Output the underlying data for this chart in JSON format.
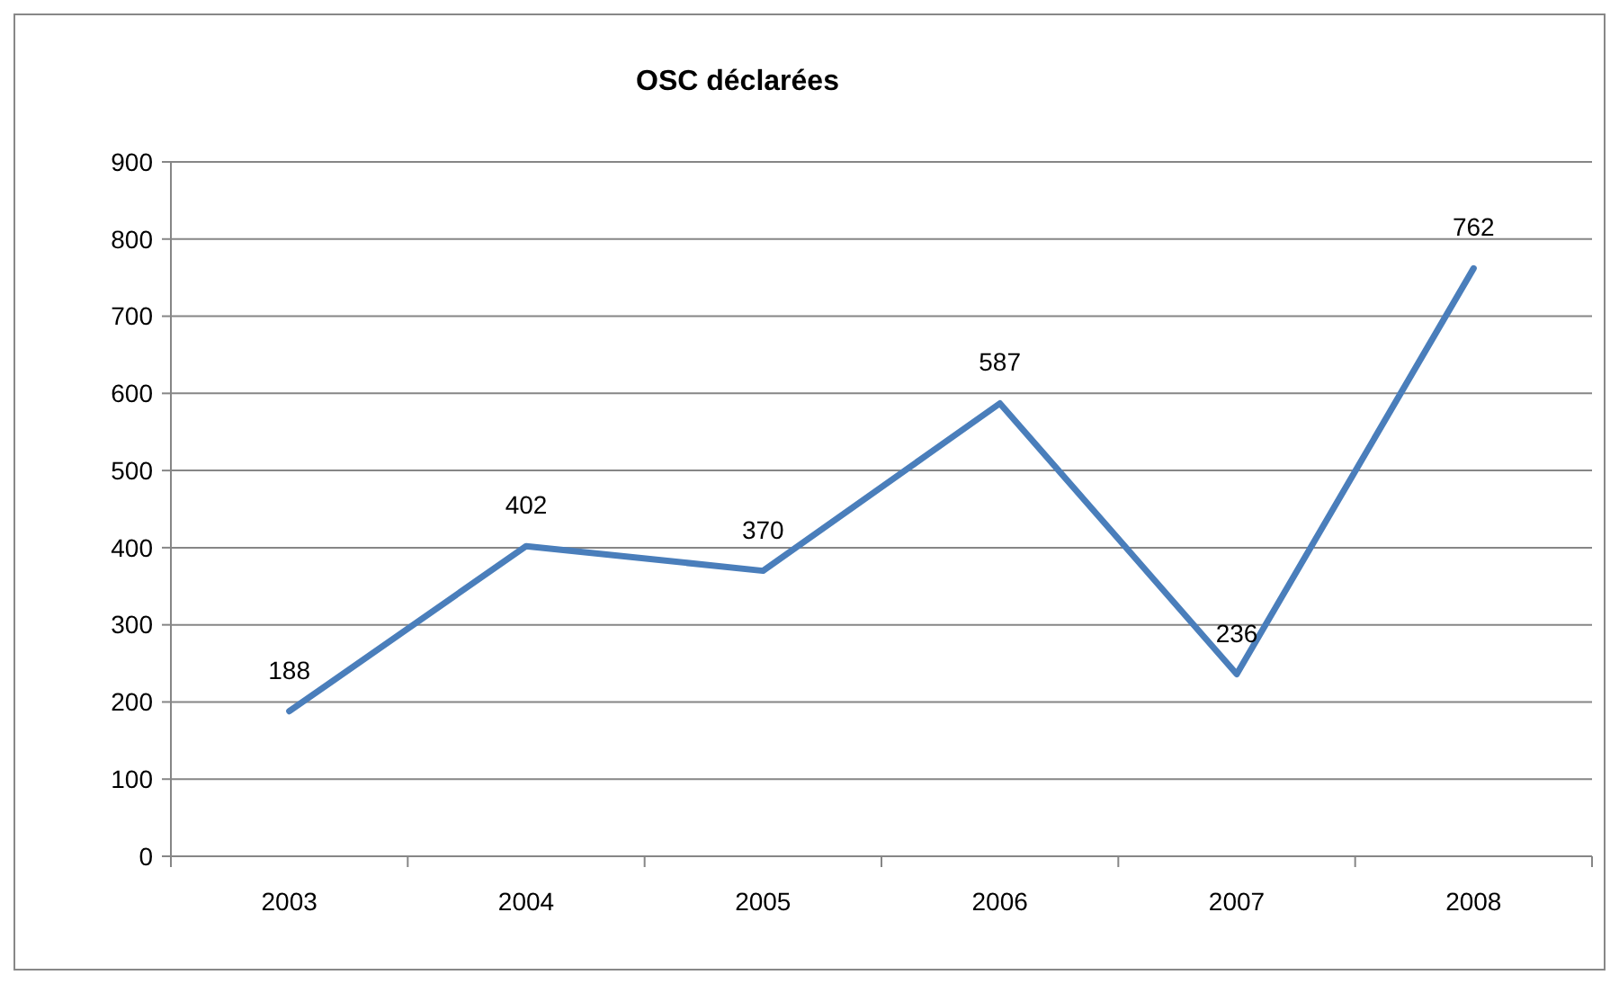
{
  "chart_data": {
    "type": "line",
    "title": "OSC déclarées",
    "categories": [
      "2003",
      "2004",
      "2005",
      "2006",
      "2007",
      "2008"
    ],
    "series": [
      {
        "color": "#4a7ebb",
        "values": [
          188,
          402,
          370,
          587,
          236,
          762
        ]
      }
    ],
    "ylim": [
      0,
      900
    ],
    "yticks": [
      0,
      100,
      200,
      300,
      400,
      500,
      600,
      700,
      800,
      900
    ],
    "grid": "y",
    "marker": "none",
    "line_style": "solid",
    "data_labels": true
  }
}
